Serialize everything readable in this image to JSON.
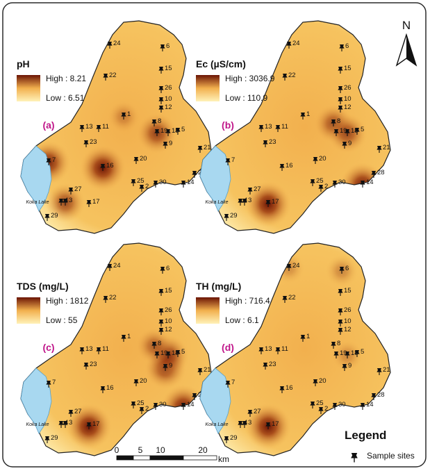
{
  "lake_label": "Koka Lake",
  "colors": {
    "low": "#fff2b8",
    "mid": "#f2b04e",
    "high": "#6b1405",
    "lake": "#a8d8f0",
    "label_accent": "#c0168a"
  },
  "panels": [
    {
      "id": "a",
      "title": "pH",
      "high": "High : 8.21",
      "low": "Low : 6.51",
      "letter": "(a)",
      "hotspots": [
        {
          "site": "16",
          "strength": 1.0
        },
        {
          "site": "7",
          "strength": 0.9
        },
        {
          "site": "19",
          "strength": 0.75
        },
        {
          "site": "3",
          "strength": 0.7
        },
        {
          "site": "1",
          "strength": 0.35
        }
      ]
    },
    {
      "id": "b",
      "title": "Ec (µS/cm)",
      "high": "High : 3036.9",
      "low": "Low : 110.9",
      "letter": "(b)",
      "hotspots": [
        {
          "site": "17",
          "strength": 1.0
        },
        {
          "site": "14",
          "strength": 0.95
        },
        {
          "site": "8",
          "strength": 0.65
        },
        {
          "site": "18",
          "strength": 0.7
        }
      ]
    },
    {
      "id": "c",
      "title": "TDS (mg/L)",
      "high": "High : 1812",
      "low": "Low : 55",
      "letter": "(c)",
      "hotspots": [
        {
          "site": "17",
          "strength": 1.0
        },
        {
          "site": "14",
          "strength": 0.95
        },
        {
          "site": "9",
          "strength": 0.8
        },
        {
          "site": "18",
          "strength": 0.8
        },
        {
          "site": "8",
          "strength": 0.55
        }
      ]
    },
    {
      "id": "d",
      "title": "TH (mg/L)",
      "high": "High : 716.4",
      "low": "Low : 6.1",
      "letter": "(d)",
      "hotspots": [
        {
          "site": "17",
          "strength": 1.0
        },
        {
          "site": "6",
          "strength": 0.35
        },
        {
          "site": "24",
          "strength": 0.3
        },
        {
          "site": "18",
          "strength": 0.3
        }
      ]
    }
  ],
  "sites": [
    "24",
    "6",
    "22",
    "15",
    "26",
    "10",
    "12",
    "1",
    "8",
    "13",
    "11",
    "19",
    "18",
    "5",
    "9",
    "23",
    "21",
    "7",
    "16",
    "20",
    "28",
    "25",
    "2",
    "30",
    "14",
    "27",
    "4",
    "3",
    "17",
    "29"
  ],
  "north_label": "N",
  "scalebar": {
    "ticks": [
      "0",
      "5",
      "10",
      "20"
    ],
    "unit": "km"
  },
  "legend": {
    "title": "Legend",
    "item": "Sample sites"
  }
}
